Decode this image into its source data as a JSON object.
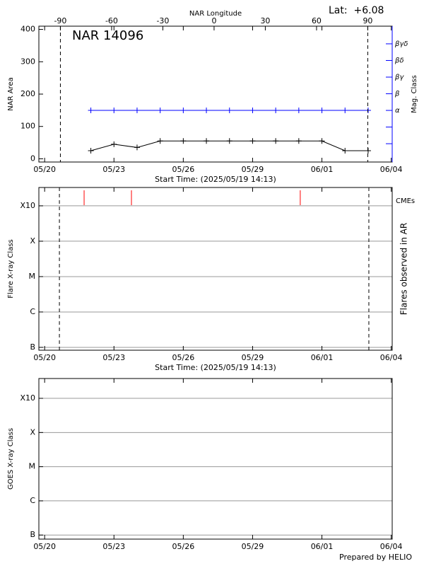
{
  "chart_data": [
    {
      "type": "line",
      "title": "NAR 14096",
      "annotation": "Lat:  +6.08",
      "x2_label": "NAR Longitude",
      "x2lim": [
        -102.6,
        104.3
      ],
      "x2ticks": [
        -90,
        -60,
        -30,
        0,
        30,
        60,
        90
      ],
      "limb_longitudes": [
        -90,
        90
      ],
      "x_label": "Start Time: (2025/05/19 14:13)",
      "xlim": [
        "05/19 18:00",
        "06/04 01:00"
      ],
      "xticks": [
        "05/20",
        "05/23",
        "05/26",
        "05/29",
        "06/01",
        "06/04"
      ],
      "x": [
        "05/22",
        "05/23",
        "05/24",
        "05/25",
        "05/26",
        "05/27",
        "05/28",
        "05/29",
        "05/30",
        "05/31",
        "06/01",
        "06/02",
        "06/03"
      ],
      "ylabel": "NAR Area",
      "ylim": [
        -10,
        410
      ],
      "yticks": [
        0,
        100,
        200,
        300,
        400
      ],
      "y2label": "Mag. Class",
      "y2color": "#0000ff",
      "y2lim": [
        -0.1,
        8.06
      ],
      "y2ticks": [
        {
          "value": 3,
          "label": "α"
        },
        {
          "value": 4,
          "label": "β"
        },
        {
          "value": 5,
          "label": "βγ"
        },
        {
          "value": 6,
          "label": "βδ"
        },
        {
          "value": 7,
          "label": "βγδ"
        }
      ],
      "y2ticks_unlabeled": [
        1,
        2
      ],
      "series": [
        {
          "color": "#000000",
          "values": [
            25,
            45,
            35,
            55,
            55,
            55,
            55,
            55,
            55,
            55,
            55,
            25,
            25
          ]
        },
        {
          "color": "#0000ff",
          "axis": "y2",
          "values": [
            3,
            3,
            3,
            3,
            3,
            3,
            3,
            3,
            3,
            3,
            3,
            3,
            3
          ]
        }
      ]
    },
    {
      "type": "events",
      "x_label": "Start Time: (2025/05/19 14:13)",
      "xlim": [
        "05/19 18:00",
        "06/04 01:00"
      ],
      "xticks": [
        "05/20",
        "05/23",
        "05/26",
        "05/29",
        "06/01",
        "06/04"
      ],
      "vlines": [
        "05/20 15:20",
        "06/03 00:45"
      ],
      "ylabel": "Flare X-ray Class",
      "log_y": true,
      "ylim": [
        8.3e-08,
        0.0033
      ],
      "yticks": [
        {
          "value": 1e-07,
          "label": "B"
        },
        {
          "value": 1e-06,
          "label": "C"
        },
        {
          "value": 1e-05,
          "label": "M"
        },
        {
          "value": 0.0001,
          "label": "X"
        },
        {
          "value": 0.001,
          "label": "X10"
        }
      ],
      "grid": true,
      "y2label": "Flares observed in AR",
      "cme_label": "CMEs",
      "cme_color": "#ff0000",
      "cme_times": [
        "05/21 17:00",
        "05/23 18:10",
        "05/31 01:30"
      ]
    },
    {
      "type": "events",
      "xlim": [
        "05/19 18:00",
        "06/04 01:00"
      ],
      "xticks": [
        "05/20",
        "05/23",
        "05/26",
        "05/29",
        "06/01",
        "06/04"
      ],
      "ylabel": "GOES X-ray Class",
      "log_y": true,
      "ylim": [
        7.6e-08,
        0.0038
      ],
      "yticks": [
        {
          "value": 1e-07,
          "label": "B"
        },
        {
          "value": 1e-06,
          "label": "C"
        },
        {
          "value": 1e-05,
          "label": "M"
        },
        {
          "value": 0.0001,
          "label": "X"
        },
        {
          "value": 0.001,
          "label": "X10"
        }
      ],
      "grid": true
    }
  ],
  "footer": "Prepared by HELIO"
}
